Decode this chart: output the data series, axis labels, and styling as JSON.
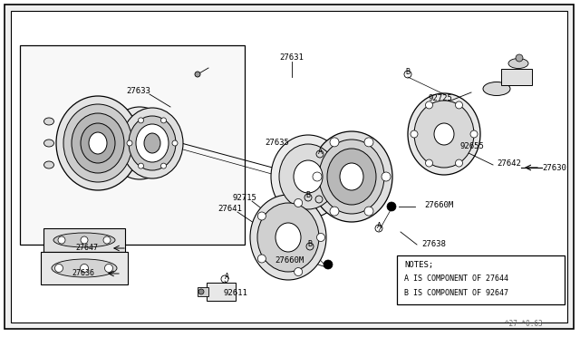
{
  "bg_color": "#ffffff",
  "line_color": "#000000",
  "notes_text": "NOTES;",
  "note1": "A IS COMPONENT OF 27644",
  "note2": "B IS COMPONENT OF 92647",
  "footnote": "^27 *0.63"
}
